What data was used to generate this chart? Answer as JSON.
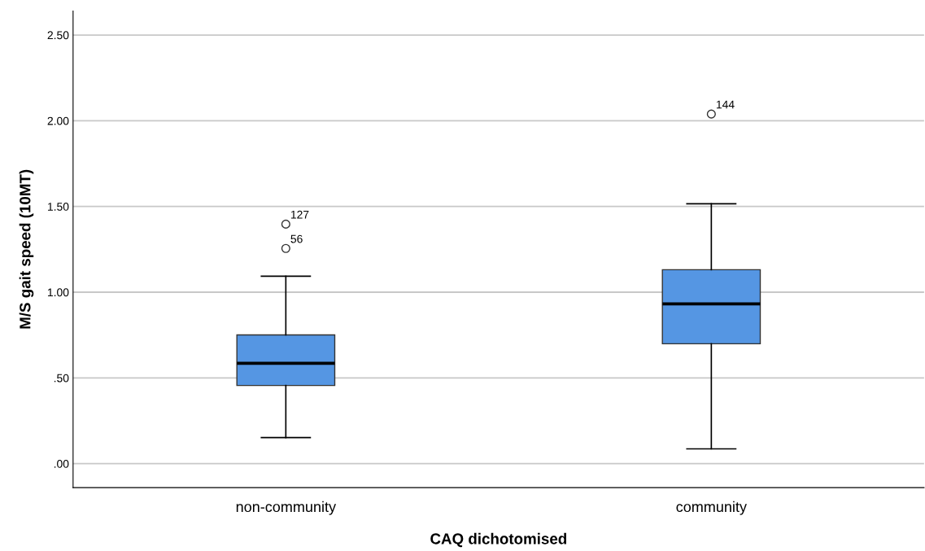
{
  "chart_data": {
    "type": "box",
    "xlabel": "CAQ dichotomised",
    "ylabel": "M/S gait speed (10MT)",
    "categories": [
      "non-community",
      "community"
    ],
    "boxes": [
      {
        "low": 0.152,
        "q1": 0.456,
        "median": 0.585,
        "q3": 0.751,
        "high": 1.093,
        "outliers": [
          1.397,
          1.255
        ]
      },
      {
        "low": 0.086,
        "q1": 0.699,
        "median": 0.932,
        "q3": 1.131,
        "high": 1.516,
        "outliers": [
          2.039
        ]
      }
    ],
    "color": "#5596e3",
    "ylim": [
      -0.14,
      2.64
    ],
    "yticks": [
      {
        "value": 0,
        "label": ".00"
      },
      {
        "value": 0.5,
        "label": ".50"
      },
      {
        "value": 1,
        "label": "1.00"
      },
      {
        "value": 1.5,
        "label": "1.50"
      },
      {
        "value": 2,
        "label": "2.00"
      },
      {
        "value": 2.5,
        "label": "2.50"
      }
    ],
    "grid": "y",
    "annotations": [
      "127",
      "56",
      "144"
    ]
  }
}
